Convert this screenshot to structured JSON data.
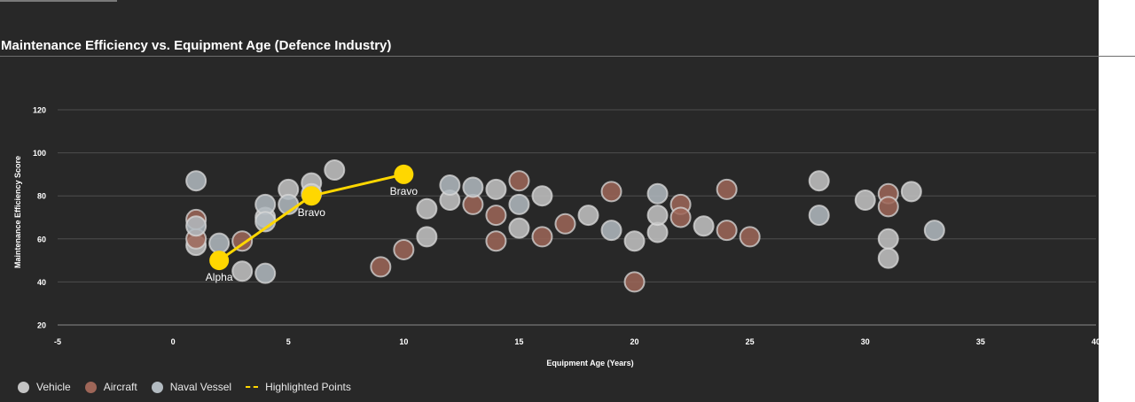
{
  "chart_data": {
    "type": "scatter",
    "title": "Maintenance Efficiency vs. Equipment Age (Defence Industry)",
    "xlabel": "Equipment Age (Years)",
    "ylabel": "Maintenance Efficiency Score",
    "xlim": [
      -5,
      40
    ],
    "ylim": [
      20,
      120
    ],
    "xticks": [
      -5,
      0,
      5,
      10,
      15,
      20,
      25,
      30,
      35,
      40
    ],
    "yticks": [
      20,
      40,
      60,
      80,
      100,
      120
    ],
    "grid": "horizontal",
    "legend_position": "bottom-left",
    "series": [
      {
        "name": "Vehicle",
        "color": "#c4c4c4",
        "points": [
          [
            1,
            57
          ],
          [
            3,
            45
          ],
          [
            4,
            70
          ],
          [
            5,
            83
          ],
          [
            6,
            86
          ],
          [
            6,
            81
          ],
          [
            7,
            92
          ],
          [
            11,
            74
          ],
          [
            11,
            61
          ],
          [
            12,
            78
          ],
          [
            14,
            83
          ],
          [
            15,
            65
          ],
          [
            16,
            80
          ],
          [
            18,
            71
          ],
          [
            20,
            59
          ],
          [
            21,
            63
          ],
          [
            21,
            71
          ],
          [
            23,
            66
          ],
          [
            28,
            87
          ],
          [
            30,
            78
          ],
          [
            31,
            60
          ],
          [
            31,
            51
          ],
          [
            32,
            82
          ]
        ]
      },
      {
        "name": "Aircraft",
        "color": "#9e6658",
        "points": [
          [
            1,
            60
          ],
          [
            1,
            69
          ],
          [
            3,
            59
          ],
          [
            9,
            47
          ],
          [
            10,
            55
          ],
          [
            13,
            76
          ],
          [
            14,
            71
          ],
          [
            14,
            59
          ],
          [
            15,
            87
          ],
          [
            16,
            61
          ],
          [
            17,
            67
          ],
          [
            19,
            82
          ],
          [
            20,
            40
          ],
          [
            22,
            76
          ],
          [
            22,
            70
          ],
          [
            24,
            83
          ],
          [
            24,
            64
          ],
          [
            25,
            61
          ],
          [
            31,
            81
          ],
          [
            31,
            75
          ]
        ]
      },
      {
        "name": "Naval Vessel",
        "color": "#b3bbc1",
        "points": [
          [
            1,
            87
          ],
          [
            1,
            66
          ],
          [
            2,
            58
          ],
          [
            4,
            76
          ],
          [
            4,
            68
          ],
          [
            4,
            44
          ],
          [
            5,
            76
          ],
          [
            12,
            85
          ],
          [
            13,
            84
          ],
          [
            15,
            76
          ],
          [
            19,
            64
          ],
          [
            21,
            81
          ],
          [
            28,
            71
          ],
          [
            33,
            64
          ]
        ]
      }
    ],
    "highlight": {
      "name": "Highlighted Points",
      "color": "#ffd700",
      "points": [
        [
          2,
          50
        ],
        [
          6,
          80
        ],
        [
          10,
          90
        ]
      ],
      "labels": [
        "Alpha",
        "Bravo",
        "Bravo"
      ]
    }
  }
}
